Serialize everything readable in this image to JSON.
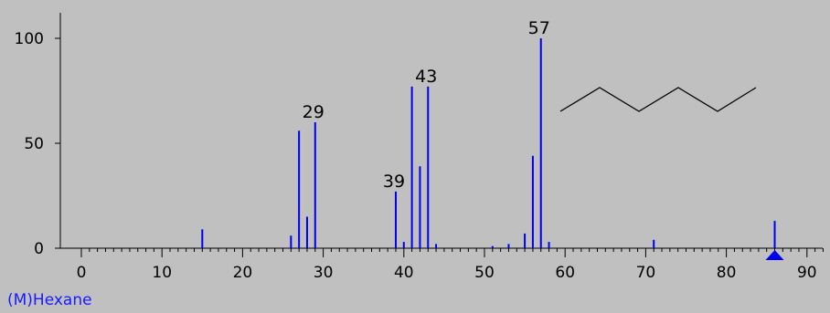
{
  "chart_data": {
    "type": "bar",
    "title": "",
    "compound_label": "(M)Hexane",
    "xlabel": "",
    "ylabel": "",
    "xlim": [
      0,
      92
    ],
    "ylim": [
      0,
      100
    ],
    "x_ticks": [
      "0",
      "10",
      "20",
      "30",
      "40",
      "50",
      "60",
      "70",
      "80",
      "90"
    ],
    "y_ticks": [
      "0",
      "50",
      "100"
    ],
    "grid": false,
    "bar_color": "#0000ee",
    "background": "#c0c0c0",
    "peaks": [
      {
        "mz": 15,
        "intensity": 9
      },
      {
        "mz": 26,
        "intensity": 6
      },
      {
        "mz": 27,
        "intensity": 56
      },
      {
        "mz": 28,
        "intensity": 15
      },
      {
        "mz": 29,
        "intensity": 60,
        "label": "29"
      },
      {
        "mz": 39,
        "intensity": 27,
        "label": "39"
      },
      {
        "mz": 40,
        "intensity": 3
      },
      {
        "mz": 41,
        "intensity": 77
      },
      {
        "mz": 42,
        "intensity": 39
      },
      {
        "mz": 43,
        "intensity": 77,
        "label": "43"
      },
      {
        "mz": 44,
        "intensity": 2
      },
      {
        "mz": 51,
        "intensity": 1
      },
      {
        "mz": 53,
        "intensity": 2
      },
      {
        "mz": 55,
        "intensity": 7
      },
      {
        "mz": 56,
        "intensity": 44
      },
      {
        "mz": 57,
        "intensity": 100,
        "label": "57"
      },
      {
        "mz": 58,
        "intensity": 3
      },
      {
        "mz": 71,
        "intensity": 4
      },
      {
        "mz": 86,
        "intensity": 13
      }
    ],
    "molecular_ion_marker_mz": 86
  }
}
